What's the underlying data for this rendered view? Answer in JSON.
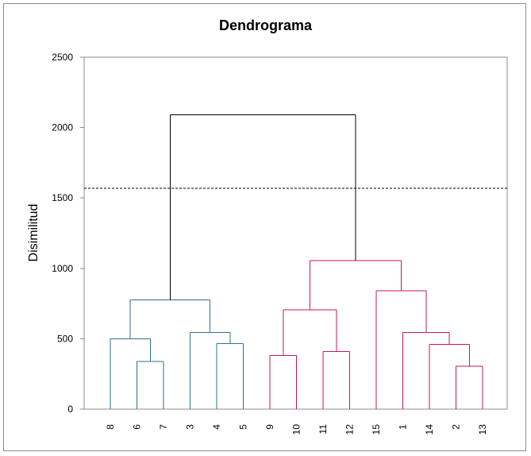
{
  "chart_data": {
    "type": "dendrogram",
    "title": "Dendrograma",
    "ylabel": "Disimilitud",
    "xlabel": "",
    "ylim": [
      0,
      2500
    ],
    "yticks": [
      0,
      500,
      1000,
      1500,
      2000,
      2500
    ],
    "grid": false,
    "leaves": [
      "8",
      "6",
      "7",
      "3",
      "4",
      "5",
      "9",
      "10",
      "11",
      "12",
      "15",
      "1",
      "14",
      "2",
      "13"
    ],
    "cut_line": 1570,
    "merges": [
      {
        "left": "6",
        "right": "7",
        "height": 340,
        "cluster": "A"
      },
      {
        "left": "8",
        "right": "6+7",
        "height": 500,
        "cluster": "A"
      },
      {
        "left": "4",
        "right": "5",
        "height": 465,
        "cluster": "A"
      },
      {
        "left": "3",
        "right": "4+5",
        "height": 545,
        "cluster": "A"
      },
      {
        "left": "8+6+7",
        "right": "3+4+5",
        "height": 775,
        "cluster": "A"
      },
      {
        "left": "9",
        "right": "10",
        "height": 380,
        "cluster": "B"
      },
      {
        "left": "11",
        "right": "12",
        "height": 410,
        "cluster": "B"
      },
      {
        "left": "9+10",
        "right": "11+12",
        "height": 705,
        "cluster": "B"
      },
      {
        "left": "2",
        "right": "13",
        "height": 305,
        "cluster": "B"
      },
      {
        "left": "14",
        "right": "2+13",
        "height": 460,
        "cluster": "B"
      },
      {
        "left": "1",
        "right": "14+2+13",
        "height": 545,
        "cluster": "B"
      },
      {
        "left": "15",
        "right": "1+14+2+13",
        "height": 840,
        "cluster": "B"
      },
      {
        "left": "9+10+11+12",
        "right": "15+1+14+2+13",
        "height": 1055,
        "cluster": "B"
      },
      {
        "left": "A",
        "right": "B",
        "height": 2090,
        "cluster": "root"
      }
    ],
    "cluster_colors": {
      "A": "#31708f",
      "B": "#c8155a",
      "root": "#000000"
    },
    "axis_color": "#8c8c8c"
  }
}
